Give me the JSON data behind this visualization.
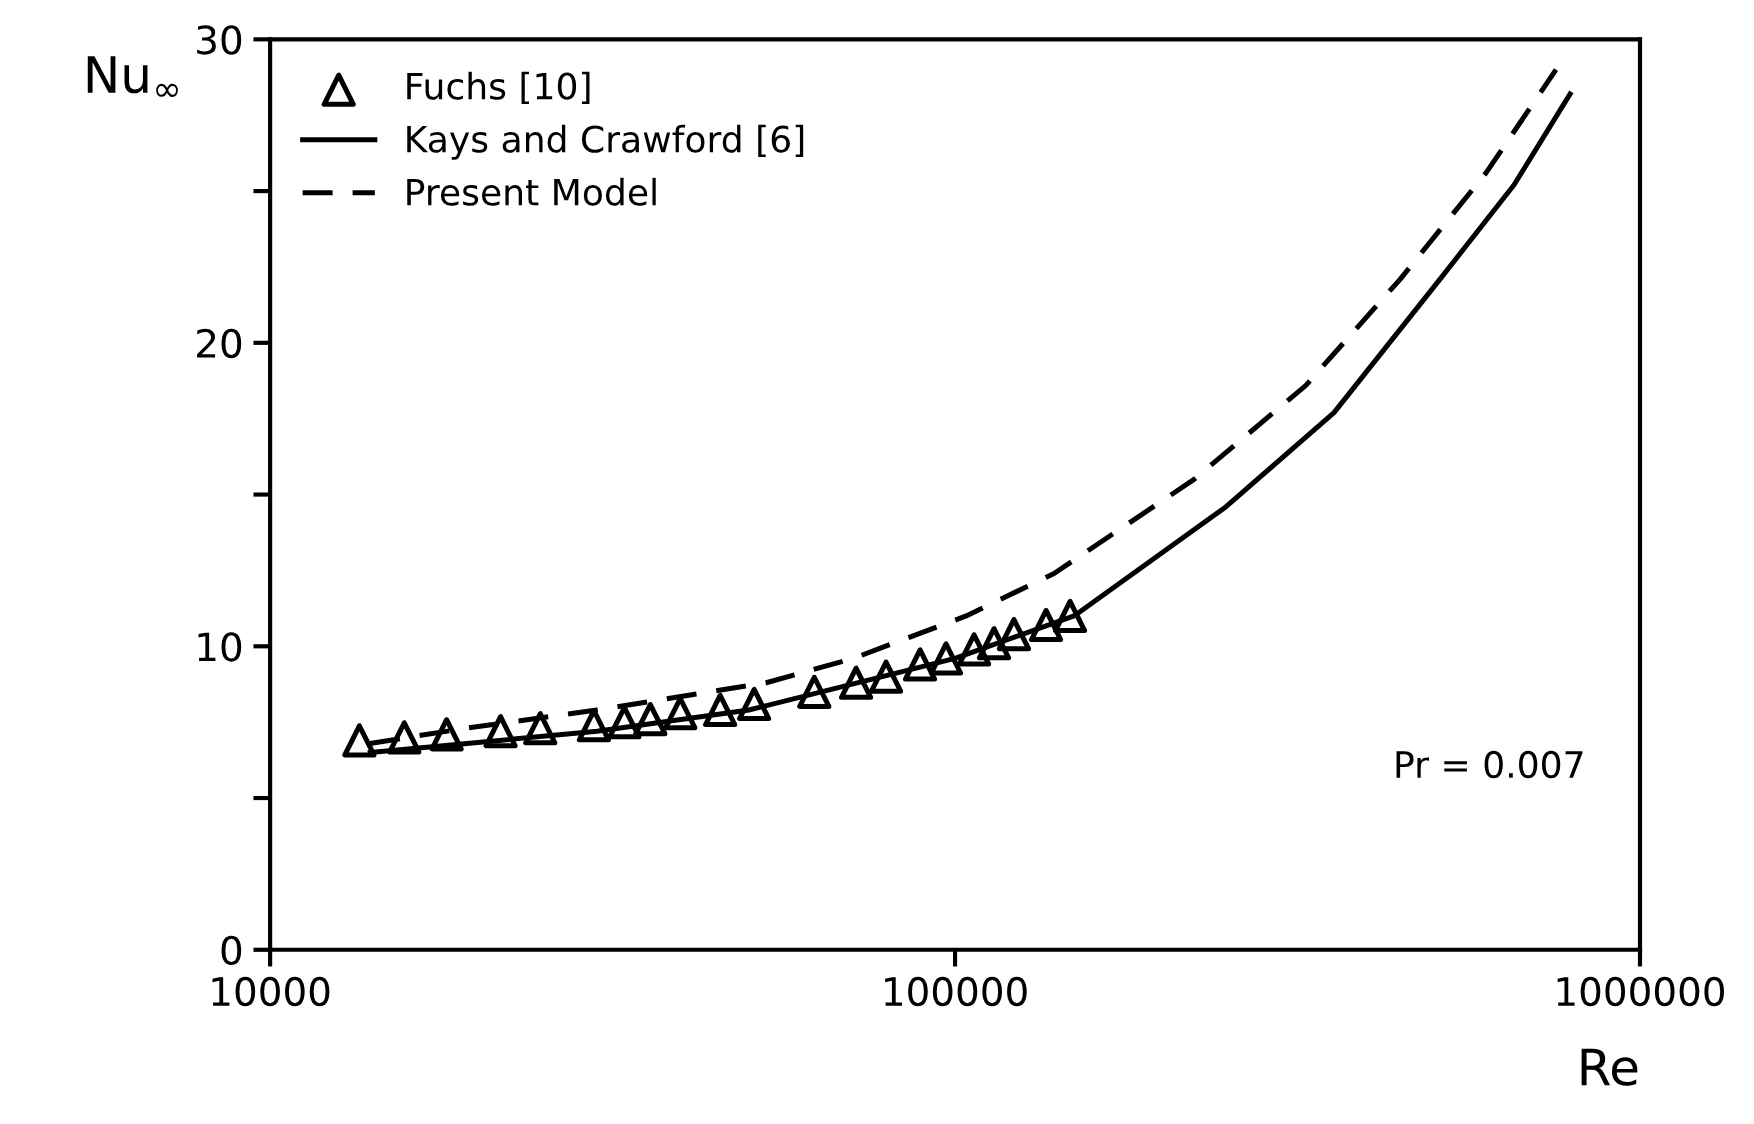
{
  "chart_data": {
    "type": "line",
    "xlabel": "Re",
    "ylabel": "Nu$_{∞}$",
    "log": "x",
    "xlim": [
      10000,
      1000000
    ],
    "xticks": [
      10000,
      100000,
      1000000
    ],
    "ylim": [
      0,
      30
    ],
    "yticks": [
      0,
      {
        "value": 5,
        "label": null
      },
      10,
      {
        "value": 15,
        "label": null
      },
      20,
      {
        "value": 25,
        "label": null
      },
      30
    ],
    "grid": false,
    "legend": "top left",
    "series": [
      {
        "name": "Fuchs [10]",
        "type": "scatter",
        "marker": "triangle",
        "color": "#000000",
        "x": [
          13500,
          15700,
          18100,
          21700,
          24800,
          29700,
          32900,
          35900,
          39700,
          45400,
          50900,
          62300,
          71700,
          79300,
          88900,
          97000,
          106600,
          114000,
          121900,
          135800,
          147200
        ],
        "values": [
          6.9,
          7.0,
          7.1,
          7.2,
          7.3,
          7.4,
          7.5,
          7.6,
          7.8,
          7.9,
          8.1,
          8.5,
          8.8,
          9.0,
          9.4,
          9.6,
          9.9,
          10.1,
          10.4,
          10.7,
          11.0
        ]
      },
      {
        "name": "Kays and Crawford [6]",
        "line_style": "solid",
        "color": "#000000",
        "x": [
          14000,
          30000,
          50000,
          100000,
          149200,
          248700,
          357500,
          510600,
          654600,
          790500
        ],
        "values": [
          6.5,
          7.2,
          7.9,
          9.6,
          11.0,
          14.6,
          17.7,
          22.1,
          25.2,
          28.2
        ]
      },
      {
        "name": "Present Model",
        "line_style": "dashed",
        "color": "#000000",
        "x": [
          14000,
          19300,
          30000,
          53000,
          71000,
          103800,
          139500,
          223300,
          325300,
          446700,
          596000,
          754000
        ],
        "values": [
          6.8,
          7.3,
          7.9,
          8.8,
          9.6,
          11.0,
          12.4,
          15.5,
          18.6,
          22.1,
          25.6,
          29.0
        ]
      }
    ],
    "annotations": [
      "Pr = 0.007"
    ]
  }
}
